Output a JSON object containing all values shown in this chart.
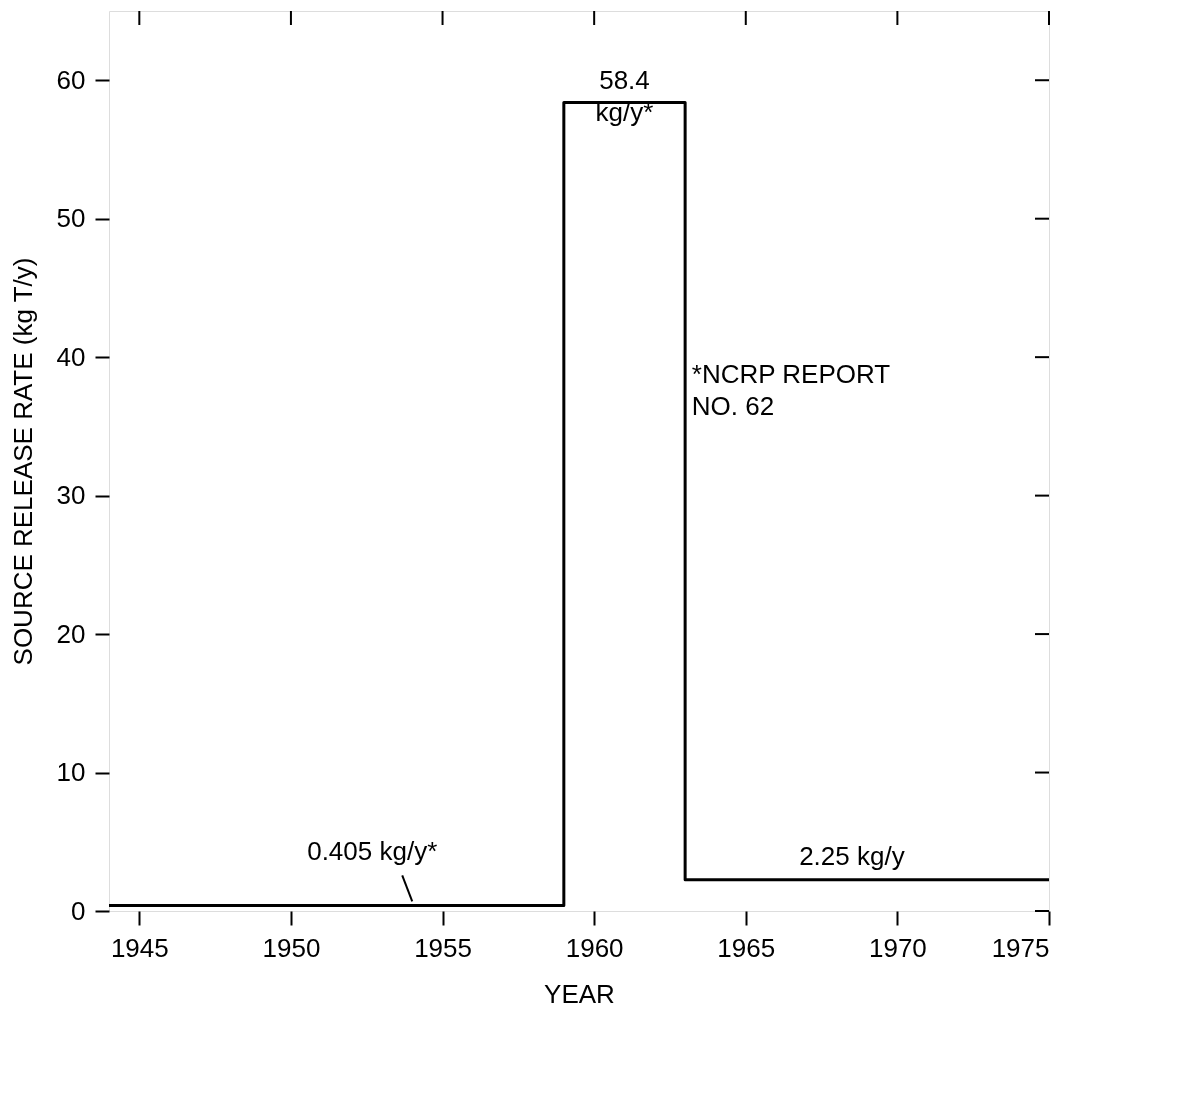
{
  "chart_data": {
    "type": "step",
    "xlabel": "YEAR",
    "ylabel": "SOURCE RELEASE RATE (kg T/y)",
    "x": [
      1944,
      1959,
      1963,
      1975
    ],
    "series": [
      {
        "color": "#000000",
        "values": [
          0.405,
          58.4,
          2.25,
          2.25
        ]
      }
    ],
    "xlim": [
      1944,
      1975
    ],
    "xticks": [
      1945,
      1950,
      1955,
      1960,
      1965,
      1970,
      1975
    ],
    "ylim": [
      0,
      65
    ],
    "yticks": [
      0,
      10,
      20,
      30,
      40,
      50,
      60
    ],
    "grid": false,
    "marker": "none",
    "line_style": "solid",
    "annotations": [
      {
        "text": "58.4\nkg/y*",
        "x": 1961,
        "y": 58.4
      },
      {
        "text": "0.405 kg/y*",
        "x": 1954,
        "y": 0.405
      },
      {
        "text": "2.25 kg/y",
        "x": 1968.5,
        "y": 2.25
      },
      "*NCRP REPORT\n NO. 62"
    ]
  }
}
